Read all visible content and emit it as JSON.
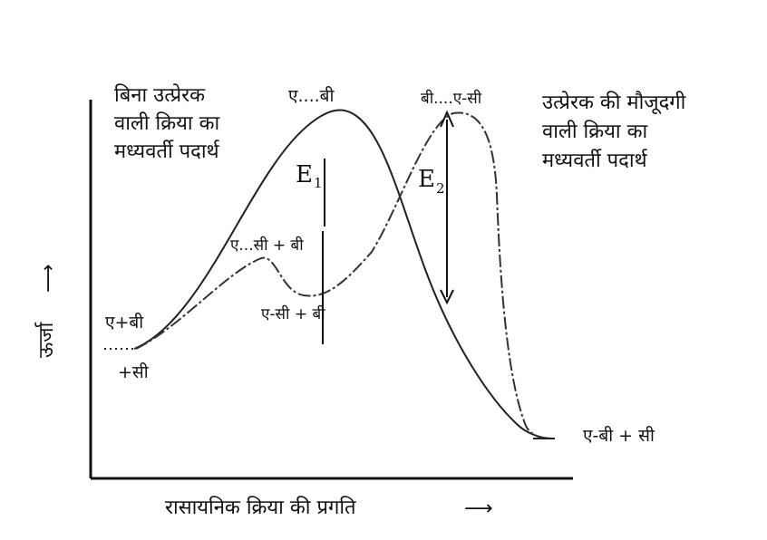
{
  "labels": {
    "uncat_title": [
      "बिना उत्प्रेरक",
      "वाली क्रिया का",
      "मध्यवर्ती पदार्थ"
    ],
    "cat_title": [
      "उत्प्रेरक की मौजूदगी",
      "वाली क्रिया का",
      "मध्यवर्ती पदार्थ"
    ],
    "peak_uncat": "ए....बी",
    "peak_cat": "बी....ए-सी",
    "inter_complex": "ए...सी + बी",
    "intermediate": "ए-सी + बी",
    "reactant_top": "ए+बी",
    "reactant_bottom": "+सी",
    "product": "ए-बी + सी",
    "e1": "E",
    "e1_sub": "1",
    "e2": "E",
    "e2_sub": "2",
    "y_axis": "ऊर्जा",
    "y_arrow": "⟶",
    "x_axis": "रासायनिक क्रिया की प्रगति",
    "x_arrow": "⟶"
  }
}
